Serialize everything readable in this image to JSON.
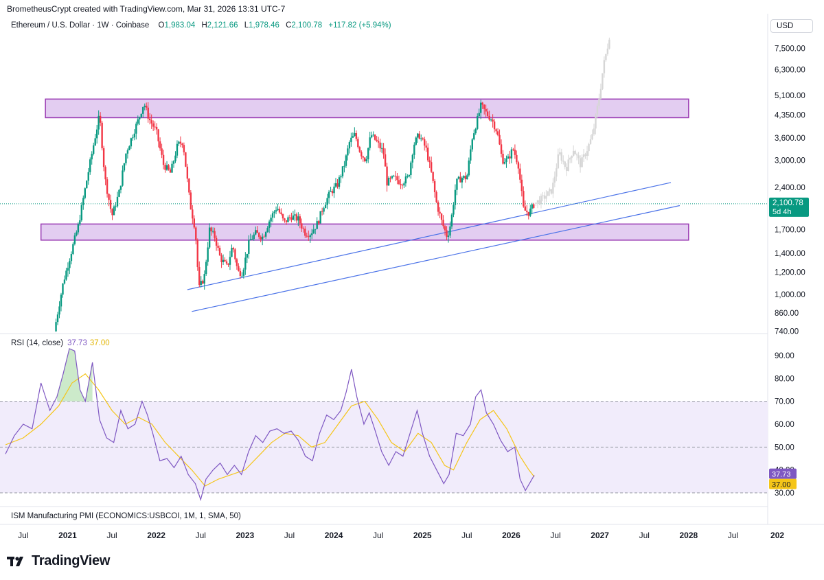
{
  "header": {
    "attribution": "BrometheusCrypt created with TradingView.com, Mar 31, 2026 13:31 UTC-7",
    "currency": "USD"
  },
  "symbol": {
    "title": "Ethereum / U.S. Dollar · 1W · Coinbase",
    "o_label": "O",
    "o_value": "1,983.04",
    "h_label": "H",
    "h_value": "2,121.66",
    "l_label": "L",
    "l_value": "1,978.46",
    "c_label": "C",
    "c_value": "2,100.78",
    "change": "+117.82 (+5.94%)"
  },
  "price_axis": {
    "ticks": [
      {
        "label": "7,500.00",
        "value": 7500
      },
      {
        "label": "6,300.00",
        "value": 6300
      },
      {
        "label": "5,100.00",
        "value": 5100
      },
      {
        "label": "4,350.00",
        "value": 4350
      },
      {
        "label": "3,600.00",
        "value": 3600
      },
      {
        "label": "3,000.00",
        "value": 3000
      },
      {
        "label": "2,400.00",
        "value": 2400
      },
      {
        "label": "1,700.00",
        "value": 1700
      },
      {
        "label": "1,400.00",
        "value": 1400
      },
      {
        "label": "1,200.00",
        "value": 1200
      },
      {
        "label": "1,000.00",
        "value": 1000
      },
      {
        "label": "860.00",
        "value": 860
      },
      {
        "label": "740.00",
        "value": 740
      }
    ],
    "current_price": "2,100.78",
    "countdown": "5d 4h"
  },
  "rsi": {
    "title": "RSI (14, close)",
    "value": "37.73",
    "ma_value": "37.00",
    "ticks": [
      {
        "label": "90.00",
        "value": 90
      },
      {
        "label": "80.00",
        "value": 80
      },
      {
        "label": "70.00",
        "value": 70
      },
      {
        "label": "60.00",
        "value": 60
      },
      {
        "label": "50.00",
        "value": 50
      },
      {
        "label": "40.00",
        "value": 40
      },
      {
        "label": "30.00",
        "value": 30
      }
    ]
  },
  "ism": {
    "title": "ISM Manufacturing PMI (ECONOMICS:USBCOI, 1M, 1, SMA, 50)"
  },
  "time_axis": {
    "labels": [
      {
        "label": "Jul",
        "bold": false,
        "t": 2020.5
      },
      {
        "label": "2021",
        "bold": true,
        "t": 2021.0
      },
      {
        "label": "Jul",
        "bold": false,
        "t": 2021.5
      },
      {
        "label": "2022",
        "bold": true,
        "t": 2022.0
      },
      {
        "label": "Jul",
        "bold": false,
        "t": 2022.5
      },
      {
        "label": "2023",
        "bold": true,
        "t": 2023.0
      },
      {
        "label": "Jul",
        "bold": false,
        "t": 2023.5
      },
      {
        "label": "2024",
        "bold": true,
        "t": 2024.0
      },
      {
        "label": "Jul",
        "bold": false,
        "t": 2024.5
      },
      {
        "label": "2025",
        "bold": true,
        "t": 2025.0
      },
      {
        "label": "Jul",
        "bold": false,
        "t": 2025.5
      },
      {
        "label": "2026",
        "bold": true,
        "t": 2026.0
      },
      {
        "label": "Jul",
        "bold": false,
        "t": 2026.5
      },
      {
        "label": "2027",
        "bold": true,
        "t": 2027.0
      },
      {
        "label": "Jul",
        "bold": false,
        "t": 2027.5
      },
      {
        "label": "2028",
        "bold": true,
        "t": 2028.0
      },
      {
        "label": "Jul",
        "bold": false,
        "t": 2028.5
      },
      {
        "label": "202",
        "bold": true,
        "t": 2029.0
      }
    ]
  },
  "branding": {
    "logo_text": "TradingView"
  },
  "colors": {
    "up": "#089981",
    "down": "#f23645",
    "zone_fill": "#e1c8f0",
    "zone_stroke": "#8e24aa",
    "trend": "#4a72e8",
    "projection": "#d6d6d6",
    "rsi_line": "#7e57c2",
    "rsi_ma": "#f5c518",
    "rsi_band": "#f1ecfb",
    "price_tag": "#089981",
    "rsi_tag": "#7e57c2",
    "ma_tag": "#f5c518"
  },
  "chart_data": {
    "type": "candlestick",
    "title": "Ethereum / U.S. Dollar · 1W · Coinbase",
    "y_scale": "log",
    "x_range": [
      2020.3,
      2029.1
    ],
    "y_range": [
      720,
      9000
    ],
    "resistance_zone": {
      "low": 4250,
      "high": 4950,
      "start": 2020.75,
      "end": 2028.0
    },
    "support_zone": {
      "low": 1560,
      "high": 1780,
      "start": 2020.7,
      "end": 2028.0
    },
    "trendlines": [
      {
        "start": [
          2022.35,
          1040
        ],
        "end": [
          2027.8,
          2500
        ]
      },
      {
        "start": [
          2022.4,
          870
        ],
        "end": [
          2027.9,
          2070
        ]
      }
    ],
    "price_path": [
      [
        2020.85,
        740
      ],
      [
        2020.95,
        1100
      ],
      [
        2021.05,
        1450
      ],
      [
        2021.12,
        1750
      ],
      [
        2021.2,
        2400
      ],
      [
        2021.3,
        3500
      ],
      [
        2021.36,
        4350
      ],
      [
        2021.42,
        2600
      ],
      [
        2021.5,
        1900
      ],
      [
        2021.58,
        2300
      ],
      [
        2021.66,
        3200
      ],
      [
        2021.72,
        3600
      ],
      [
        2021.8,
        4200
      ],
      [
        2021.86,
        4800
      ],
      [
        2021.92,
        4200
      ],
      [
        2022.0,
        3800
      ],
      [
        2022.08,
        2900
      ],
      [
        2022.16,
        2700
      ],
      [
        2022.24,
        3400
      ],
      [
        2022.3,
        3500
      ],
      [
        2022.38,
        2100
      ],
      [
        2022.44,
        1700
      ],
      [
        2022.48,
        1050
      ],
      [
        2022.54,
        1150
      ],
      [
        2022.6,
        1700
      ],
      [
        2022.66,
        1600
      ],
      [
        2022.72,
        1350
      ],
      [
        2022.8,
        1250
      ],
      [
        2022.86,
        1500
      ],
      [
        2022.92,
        1200
      ],
      [
        2022.97,
        1200
      ],
      [
        2023.05,
        1550
      ],
      [
        2023.12,
        1650
      ],
      [
        2023.2,
        1600
      ],
      [
        2023.28,
        1850
      ],
      [
        2023.36,
        2050
      ],
      [
        2023.44,
        1800
      ],
      [
        2023.52,
        1900
      ],
      [
        2023.6,
        1850
      ],
      [
        2023.68,
        1650
      ],
      [
        2023.74,
        1650
      ],
      [
        2023.82,
        1800
      ],
      [
        2023.88,
        2050
      ],
      [
        2023.96,
        2300
      ],
      [
        2024.04,
        2450
      ],
      [
        2024.12,
        2900
      ],
      [
        2024.18,
        3500
      ],
      [
        2024.24,
        3700
      ],
      [
        2024.3,
        3200
      ],
      [
        2024.36,
        3000
      ],
      [
        2024.42,
        3700
      ],
      [
        2024.48,
        3500
      ],
      [
        2024.56,
        3200
      ],
      [
        2024.6,
        2500
      ],
      [
        2024.68,
        2600
      ],
      [
        2024.76,
        2500
      ],
      [
        2024.84,
        2600
      ],
      [
        2024.9,
        3400
      ],
      [
        2024.96,
        3700
      ],
      [
        2025.04,
        3300
      ],
      [
        2025.1,
        2700
      ],
      [
        2025.16,
        2100
      ],
      [
        2025.22,
        1800
      ],
      [
        2025.28,
        1600
      ],
      [
        2025.32,
        1800
      ],
      [
        2025.38,
        2500
      ],
      [
        2025.44,
        2600
      ],
      [
        2025.5,
        2600
      ],
      [
        2025.56,
        3600
      ],
      [
        2025.62,
        4200
      ],
      [
        2025.66,
        4700
      ],
      [
        2025.72,
        4400
      ],
      [
        2025.78,
        4200
      ],
      [
        2025.84,
        3800
      ],
      [
        2025.9,
        3000
      ],
      [
        2025.96,
        3000
      ],
      [
        2026.02,
        3300
      ],
      [
        2026.08,
        2900
      ],
      [
        2026.14,
        2000
      ],
      [
        2026.2,
        1950
      ],
      [
        2026.26,
        2100
      ]
    ],
    "projection_path": [
      [
        2026.26,
        2100
      ],
      [
        2026.36,
        2200
      ],
      [
        2026.46,
        2350
      ],
      [
        2026.54,
        3200
      ],
      [
        2026.62,
        2800
      ],
      [
        2026.7,
        3300
      ],
      [
        2026.78,
        2900
      ],
      [
        2026.86,
        3300
      ],
      [
        2026.92,
        3700
      ],
      [
        2026.96,
        4400
      ],
      [
        2027.0,
        5200
      ],
      [
        2027.04,
        6500
      ],
      [
        2027.08,
        7400
      ],
      [
        2027.12,
        8800
      ]
    ],
    "rsi_path": [
      [
        2020.3,
        47
      ],
      [
        2020.4,
        55
      ],
      [
        2020.5,
        60
      ],
      [
        2020.6,
        58
      ],
      [
        2020.7,
        78
      ],
      [
        2020.8,
        66
      ],
      [
        2020.88,
        72
      ],
      [
        2020.95,
        82
      ],
      [
        2021.02,
        93
      ],
      [
        2021.08,
        92
      ],
      [
        2021.14,
        75
      ],
      [
        2021.2,
        70
      ],
      [
        2021.28,
        87
      ],
      [
        2021.36,
        62
      ],
      [
        2021.44,
        54
      ],
      [
        2021.52,
        52
      ],
      [
        2021.6,
        66
      ],
      [
        2021.68,
        58
      ],
      [
        2021.76,
        60
      ],
      [
        2021.84,
        70
      ],
      [
        2021.9,
        64
      ],
      [
        2021.96,
        56
      ],
      [
        2022.04,
        44
      ],
      [
        2022.12,
        45
      ],
      [
        2022.2,
        41
      ],
      [
        2022.28,
        46
      ],
      [
        2022.36,
        38
      ],
      [
        2022.44,
        34
      ],
      [
        2022.5,
        27
      ],
      [
        2022.56,
        36
      ],
      [
        2022.64,
        40
      ],
      [
        2022.72,
        43
      ],
      [
        2022.8,
        38
      ],
      [
        2022.88,
        42
      ],
      [
        2022.96,
        38
      ],
      [
        2023.04,
        48
      ],
      [
        2023.12,
        55
      ],
      [
        2023.2,
        52
      ],
      [
        2023.28,
        57
      ],
      [
        2023.36,
        58
      ],
      [
        2023.44,
        56
      ],
      [
        2023.52,
        57
      ],
      [
        2023.6,
        53
      ],
      [
        2023.68,
        46
      ],
      [
        2023.76,
        44
      ],
      [
        2023.84,
        56
      ],
      [
        2023.92,
        64
      ],
      [
        2024.0,
        62
      ],
      [
        2024.08,
        66
      ],
      [
        2024.14,
        74
      ],
      [
        2024.2,
        84
      ],
      [
        2024.26,
        72
      ],
      [
        2024.34,
        60
      ],
      [
        2024.4,
        65
      ],
      [
        2024.46,
        58
      ],
      [
        2024.54,
        48
      ],
      [
        2024.62,
        42
      ],
      [
        2024.7,
        48
      ],
      [
        2024.78,
        46
      ],
      [
        2024.86,
        56
      ],
      [
        2024.94,
        66
      ],
      [
        2025.0,
        56
      ],
      [
        2025.08,
        46
      ],
      [
        2025.16,
        40
      ],
      [
        2025.24,
        34
      ],
      [
        2025.3,
        38
      ],
      [
        2025.38,
        56
      ],
      [
        2025.46,
        55
      ],
      [
        2025.54,
        60
      ],
      [
        2025.6,
        72
      ],
      [
        2025.66,
        75
      ],
      [
        2025.72,
        65
      ],
      [
        2025.8,
        60
      ],
      [
        2025.88,
        53
      ],
      [
        2025.96,
        48
      ],
      [
        2026.04,
        50
      ],
      [
        2026.1,
        36
      ],
      [
        2026.16,
        31
      ],
      [
        2026.22,
        35
      ],
      [
        2026.26,
        37.7
      ]
    ],
    "rsi_ma_path": [
      [
        2020.3,
        51
      ],
      [
        2020.5,
        54
      ],
      [
        2020.7,
        60
      ],
      [
        2020.9,
        68
      ],
      [
        2021.05,
        78
      ],
      [
        2021.2,
        82
      ],
      [
        2021.35,
        75
      ],
      [
        2021.5,
        66
      ],
      [
        2021.65,
        60
      ],
      [
        2021.8,
        63
      ],
      [
        2021.95,
        60
      ],
      [
        2022.1,
        52
      ],
      [
        2022.25,
        46
      ],
      [
        2022.4,
        40
      ],
      [
        2022.55,
        33
      ],
      [
        2022.7,
        36
      ],
      [
        2022.85,
        38
      ],
      [
        2023.0,
        40
      ],
      [
        2023.15,
        46
      ],
      [
        2023.3,
        52
      ],
      [
        2023.45,
        56
      ],
      [
        2023.6,
        55
      ],
      [
        2023.75,
        50
      ],
      [
        2023.9,
        52
      ],
      [
        2024.05,
        60
      ],
      [
        2024.2,
        68
      ],
      [
        2024.35,
        70
      ],
      [
        2024.5,
        62
      ],
      [
        2024.65,
        52
      ],
      [
        2024.8,
        48
      ],
      [
        2024.95,
        56
      ],
      [
        2025.1,
        52
      ],
      [
        2025.25,
        42
      ],
      [
        2025.35,
        40
      ],
      [
        2025.5,
        52
      ],
      [
        2025.65,
        62
      ],
      [
        2025.8,
        66
      ],
      [
        2025.95,
        58
      ],
      [
        2026.1,
        46
      ],
      [
        2026.2,
        40
      ],
      [
        2026.26,
        37
      ]
    ]
  }
}
